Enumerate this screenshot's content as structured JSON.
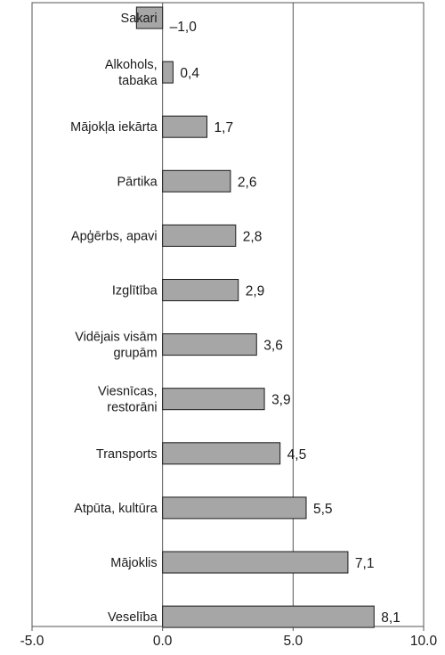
{
  "chart_data": {
    "type": "bar",
    "orientation": "horizontal",
    "title": "",
    "xlabel": "",
    "ylabel": "",
    "categories": [
      "Sakari",
      "Alkohols,\ntabaka",
      "Mājokļa iekārta",
      "Pārtika",
      "Apģērbs, apavi",
      "Izglītība",
      "Vidējais visām\ngrupām",
      "Viesnīcas,\nrestorāni",
      "Transports",
      "Atpūta, kultūra",
      "Mājoklis",
      "Veselība"
    ],
    "values": [
      -1.0,
      0.4,
      1.7,
      2.6,
      2.8,
      2.9,
      3.6,
      3.9,
      4.5,
      5.5,
      7.1,
      8.1
    ],
    "value_labels": [
      "–1,0",
      "0,4",
      "1,7",
      "2,6",
      "2,8",
      "2,9",
      "3,6",
      "3,9",
      "4,5",
      "5,5",
      "7,1",
      "8,1"
    ],
    "xlim": [
      -5.0,
      10.0
    ],
    "xticks": [
      -5.0,
      0.0,
      5.0,
      10.0
    ],
    "xtick_labels": [
      "-5.0",
      "0.0",
      "5.0",
      "10.0"
    ],
    "grid": "vertical at 5.0",
    "legend": "none",
    "colors": {
      "bar_fill": "#a6a6a6",
      "bar_stroke": "#1a1a1a",
      "axis": "#555555",
      "gridline": "#555555",
      "text": "#1a1a1a"
    }
  }
}
